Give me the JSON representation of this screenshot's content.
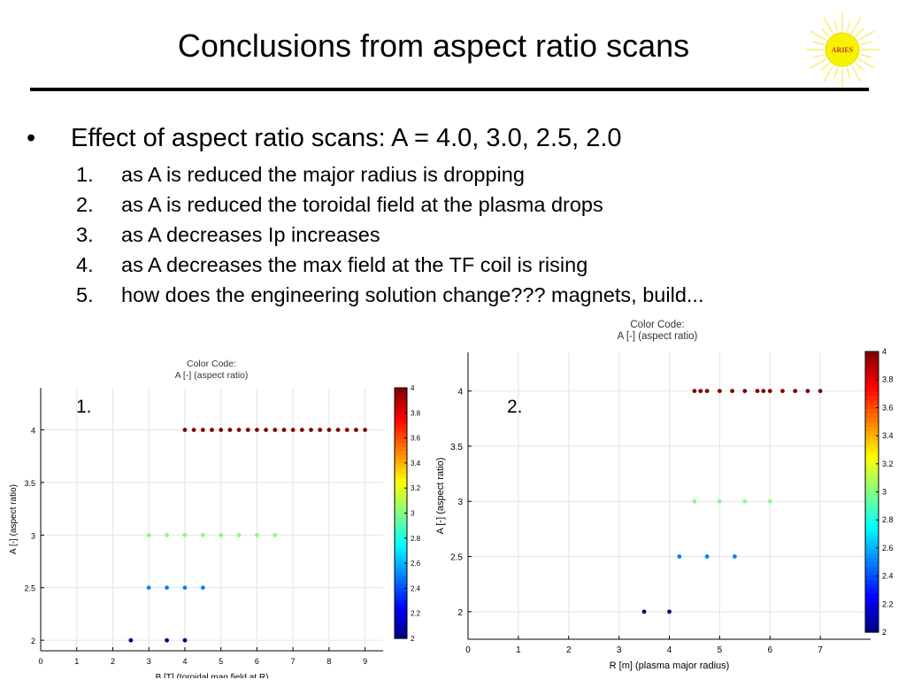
{
  "slide": {
    "title": "Conclusions from aspect ratio scans",
    "bullet": {
      "symbol": "•",
      "text": "Effect of aspect ratio scans: A = 4.0, 3.0, 2.5, 2.0"
    },
    "items": [
      {
        "num": "1.",
        "text": "as A is reduced the major radius is dropping"
      },
      {
        "num": "2.",
        "text": "as A is reduced the toroidal field at the plasma drops"
      },
      {
        "num": "3.",
        "text": "as A decreases Ip increases"
      },
      {
        "num": "4.",
        "text": "as A decreases the max field at the TF coil is rising"
      },
      {
        "num": "5.",
        "text": "how does the engineering solution change??? magnets, build..."
      }
    ],
    "logo": {
      "text": "ARIES",
      "icon": "sun-icon",
      "ray_color": "#f5ef6a",
      "disk_color": "#f7f200",
      "text_color": "#c0392b"
    }
  },
  "chart_data": [
    {
      "type": "scatter",
      "panel_label": "1.",
      "title": "Color Code:",
      "subtitle": "A [-] (aspect ratio)",
      "xlabel": "B [T] (toroidal mag field at R)",
      "ylabel": "A [-] (aspect ratio)",
      "xlim": [
        0,
        9.5
      ],
      "ylim": [
        1.9,
        4.4
      ],
      "xticks": [
        0,
        1,
        2,
        3,
        4,
        5,
        6,
        7,
        8,
        9
      ],
      "yticks": [
        2,
        2.5,
        3,
        3.5,
        4
      ],
      "grid": true,
      "colorbar": {
        "label": "",
        "range": [
          2,
          4
        ],
        "ticks": [
          2,
          2.2,
          2.4,
          2.6,
          2.8,
          3,
          3.2,
          3.4,
          3.6,
          3.8,
          4
        ],
        "colormap": "jet"
      },
      "points": [
        {
          "x": 4.0,
          "y": 4
        },
        {
          "x": 4.25,
          "y": 4
        },
        {
          "x": 4.5,
          "y": 4
        },
        {
          "x": 4.75,
          "y": 4
        },
        {
          "x": 5.0,
          "y": 4
        },
        {
          "x": 5.25,
          "y": 4
        },
        {
          "x": 5.5,
          "y": 4
        },
        {
          "x": 5.75,
          "y": 4
        },
        {
          "x": 6.0,
          "y": 4
        },
        {
          "x": 6.25,
          "y": 4
        },
        {
          "x": 6.5,
          "y": 4
        },
        {
          "x": 6.75,
          "y": 4
        },
        {
          "x": 7.0,
          "y": 4
        },
        {
          "x": 7.25,
          "y": 4
        },
        {
          "x": 7.5,
          "y": 4
        },
        {
          "x": 7.75,
          "y": 4
        },
        {
          "x": 8.0,
          "y": 4
        },
        {
          "x": 8.25,
          "y": 4
        },
        {
          "x": 8.5,
          "y": 4
        },
        {
          "x": 8.75,
          "y": 4
        },
        {
          "x": 9.0,
          "y": 4
        },
        {
          "x": 3.0,
          "y": 3
        },
        {
          "x": 3.5,
          "y": 3
        },
        {
          "x": 4.0,
          "y": 3
        },
        {
          "x": 4.5,
          "y": 3
        },
        {
          "x": 5.0,
          "y": 3
        },
        {
          "x": 5.5,
          "y": 3
        },
        {
          "x": 6.0,
          "y": 3
        },
        {
          "x": 6.5,
          "y": 3
        },
        {
          "x": 3.0,
          "y": 2.5
        },
        {
          "x": 3.5,
          "y": 2.5
        },
        {
          "x": 4.0,
          "y": 2.5
        },
        {
          "x": 4.5,
          "y": 2.5
        },
        {
          "x": 2.5,
          "y": 2
        },
        {
          "x": 3.5,
          "y": 2
        },
        {
          "x": 4.0,
          "y": 2
        }
      ]
    },
    {
      "type": "scatter",
      "panel_label": "2.",
      "title": "Color Code:",
      "subtitle": "A [-] (aspect ratio)",
      "xlabel": "R [m] (plasma major radius)",
      "ylabel": "A [-] (aspect ratio)",
      "xlim": [
        0,
        8
      ],
      "ylim": [
        1.75,
        4.35
      ],
      "xticks": [
        0,
        1,
        2,
        3,
        4,
        5,
        6,
        7
      ],
      "yticks": [
        2,
        2.5,
        3,
        3.5,
        4
      ],
      "grid": true,
      "colorbar": {
        "label": "",
        "range": [
          2,
          4
        ],
        "ticks": [
          2,
          2.2,
          2.4,
          2.6,
          2.8,
          3,
          3.2,
          3.4,
          3.6,
          3.8,
          4
        ],
        "colormap": "jet"
      },
      "points": [
        {
          "x": 4.5,
          "y": 4
        },
        {
          "x": 4.62,
          "y": 4
        },
        {
          "x": 4.75,
          "y": 4
        },
        {
          "x": 5.0,
          "y": 4
        },
        {
          "x": 5.25,
          "y": 4
        },
        {
          "x": 5.5,
          "y": 4
        },
        {
          "x": 5.75,
          "y": 4
        },
        {
          "x": 5.87,
          "y": 4
        },
        {
          "x": 6.0,
          "y": 4
        },
        {
          "x": 6.25,
          "y": 4
        },
        {
          "x": 6.5,
          "y": 4
        },
        {
          "x": 6.75,
          "y": 4
        },
        {
          "x": 7.0,
          "y": 4
        },
        {
          "x": 4.5,
          "y": 3
        },
        {
          "x": 5.0,
          "y": 3
        },
        {
          "x": 5.5,
          "y": 3
        },
        {
          "x": 6.0,
          "y": 3
        },
        {
          "x": 4.2,
          "y": 2.5
        },
        {
          "x": 4.75,
          "y": 2.5
        },
        {
          "x": 5.3,
          "y": 2.5
        },
        {
          "x": 3.5,
          "y": 2
        },
        {
          "x": 4.0,
          "y": 2
        }
      ]
    }
  ]
}
